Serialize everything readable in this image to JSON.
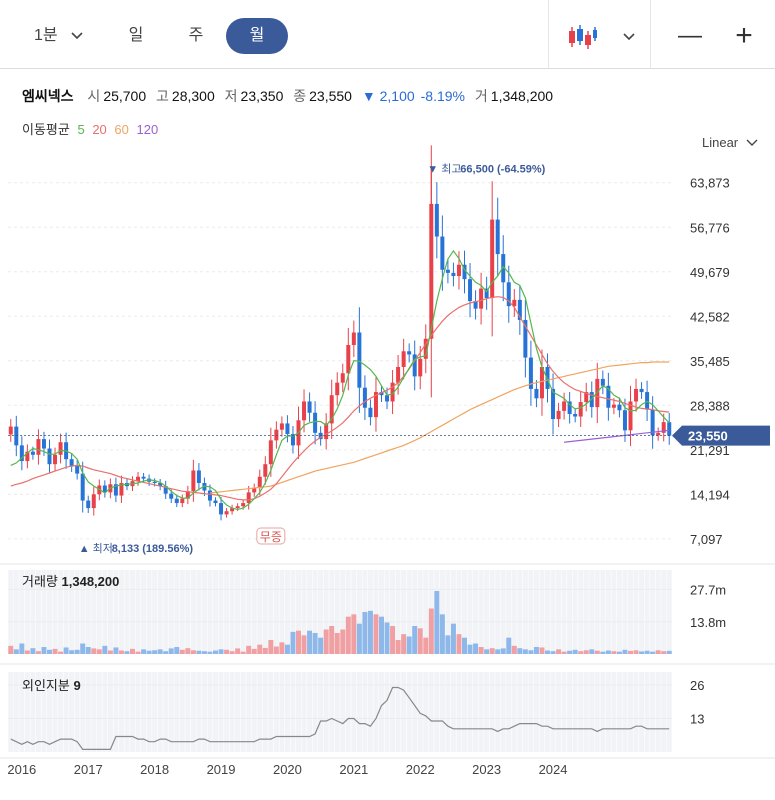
{
  "toolbar": {
    "tabs": [
      {
        "label": "1분",
        "active": false,
        "dropdown": true
      },
      {
        "label": "일",
        "active": false
      },
      {
        "label": "주",
        "active": false
      },
      {
        "label": "월",
        "active": true
      }
    ],
    "chart_type_icon": "candlestick-icon",
    "zoom_out": "—",
    "zoom_in": "+"
  },
  "stock": {
    "name": "엠씨넥스",
    "open_label": "시",
    "open": "25,700",
    "high_label": "고",
    "high": "28,300",
    "low_label": "저",
    "low": "23,350",
    "close_label": "종",
    "close": "23,550",
    "change": "▼ 2,100",
    "change_pct": "-8.19%",
    "volume_label": "거",
    "volume": "1,348,200"
  },
  "moving_average": {
    "label": "이동평균",
    "periods": [
      {
        "label": "5",
        "color": "#55b74e"
      },
      {
        "label": "20",
        "color": "#e8716c"
      },
      {
        "label": "60",
        "color": "#f0a460"
      },
      {
        "label": "120",
        "color": "#9b5fd6"
      }
    ]
  },
  "scale_mode": "Linear",
  "colors": {
    "up": "#e8414a",
    "down": "#2774d6",
    "accent": "#3b5a9a"
  },
  "chart_data": {
    "type": "candlestick",
    "price_axis_ticks": [
      63873,
      56776,
      49679,
      42582,
      35485,
      28388,
      21291,
      14194,
      7097
    ],
    "price_axis_labels": [
      "63,873",
      "56,776",
      "49,679",
      "42,582",
      "35,485",
      "28,388",
      "21,291",
      "14,194",
      "7,097"
    ],
    "ylim": [
      5000,
      67500
    ],
    "current_price": 23550,
    "current_price_label": "23,550",
    "high_marker": {
      "label": "최고",
      "value_text": "66,500 (-64.59%)",
      "value": 66500
    },
    "low_marker": {
      "label": "최저",
      "value_text": "8,133 (189.56%)",
      "value": 8133
    },
    "event_marker": "무증",
    "x_labels": [
      "2016",
      "2017",
      "2018",
      "2019",
      "2020",
      "2021",
      "2022",
      "2023",
      "2024"
    ],
    "grid": true,
    "ohlc_close": [
      25000,
      22000,
      19500,
      21000,
      20500,
      23000,
      21500,
      19000,
      20500,
      22500,
      19800,
      18700,
      17500,
      13200,
      12000,
      14200,
      15600,
      14500,
      15800,
      14000,
      16000,
      15500,
      16300,
      17000,
      16700,
      16200,
      16000,
      15500,
      14300,
      13500,
      12800,
      13500,
      14700,
      18000,
      16000,
      14800,
      13200,
      12800,
      11000,
      11500,
      12000,
      12300,
      12800,
      14500,
      15200,
      17000,
      19000,
      22800,
      24500,
      25500,
      23800,
      22000,
      26000,
      29000,
      27200,
      24000,
      23000,
      25500,
      30000,
      32000,
      33500,
      38000,
      40000,
      31200,
      28000,
      26500,
      30500,
      30000,
      29000,
      32000,
      34500,
      37000,
      36500,
      33000,
      35800,
      39000,
      60500,
      55300,
      50000,
      49500,
      49000,
      50800,
      48500,
      45000,
      43800,
      47000,
      45500,
      58000,
      52500,
      48000,
      44200,
      45200,
      42000,
      36000,
      31000,
      29500,
      34500,
      31000,
      26200,
      27500,
      29000,
      27000,
      26600,
      28900,
      30500,
      28100,
      32600,
      31500,
      28000,
      28500,
      27600,
      24400,
      29000,
      31000,
      30500,
      27700,
      23600,
      24000,
      25700,
      23550
    ],
    "ma5": [
      18800,
      19200,
      20000,
      20800,
      21500,
      21300,
      21000,
      20600,
      20600,
      21200,
      21100,
      20700,
      19800,
      17600,
      16200,
      15500,
      15000,
      14400,
      15200,
      15500,
      15700,
      15800,
      15900,
      16000,
      16300,
      16500,
      16400,
      16100,
      15500,
      14700,
      14000,
      13600,
      13600,
      14400,
      15000,
      15500,
      15400,
      14800,
      13400,
      12500,
      12000,
      11800,
      12000,
      12600,
      13500,
      14500,
      16000,
      18000,
      20500,
      22800,
      23500,
      23500,
      24000,
      25200,
      25600,
      25800,
      25800,
      25200,
      26200,
      27800,
      30000,
      33200,
      35500,
      35400,
      34800,
      34100,
      33000,
      31500,
      30000,
      30200,
      31300,
      32800,
      34300,
      35700,
      36100,
      36300,
      40600,
      45000,
      48600,
      51700,
      53000,
      51800,
      50000,
      49000,
      48000,
      47500,
      46500,
      48000,
      49000,
      50500,
      49500,
      48000,
      47500,
      45500,
      41500,
      37500,
      34500,
      32500,
      30500,
      30000,
      29500,
      28500,
      27800,
      28000,
      28600,
      29400,
      30500,
      31500,
      31000,
      30000,
      29500,
      28000,
      27500,
      27600,
      28500,
      29000,
      28500,
      27500,
      26500,
      25600
    ],
    "ma20": [
      15500,
      15800,
      16000,
      16300,
      16700,
      17000,
      17300,
      17600,
      17900,
      18200,
      18500,
      18700,
      18800,
      18700,
      18400,
      18100,
      17900,
      17700,
      17500,
      17200,
      16900,
      16700,
      16500,
      16300,
      16100,
      15900,
      15700,
      15500,
      15300,
      15100,
      14900,
      14700,
      14600,
      14500,
      14400,
      14300,
      14200,
      14100,
      14000,
      13800,
      13600,
      13400,
      13300,
      13300,
      13500,
      13900,
      14400,
      15000,
      15900,
      17000,
      18100,
      19200,
      20200,
      21100,
      22000,
      22700,
      23300,
      23800,
      24300,
      24900,
      25600,
      26500,
      27500,
      28300,
      29000,
      29500,
      30000,
      30400,
      30800,
      31300,
      32000,
      33000,
      34200,
      35500,
      36800,
      38200,
      39500,
      40700,
      41800,
      42700,
      43400,
      44000,
      44400,
      44700,
      44900,
      45100,
      45400,
      45600,
      45700,
      45600,
      45000,
      44000,
      42500,
      41000,
      39500,
      38000,
      36500,
      35000,
      33800,
      32800,
      32000,
      31400,
      30900,
      30600,
      30300,
      30000,
      29800,
      29600,
      29400,
      29200,
      29000,
      28700,
      28400,
      28100,
      27900,
      27800,
      27700,
      27500,
      27400,
      27300
    ],
    "ma60": [
      null,
      null,
      null,
      null,
      null,
      null,
      null,
      null,
      null,
      null,
      null,
      null,
      null,
      null,
      null,
      null,
      null,
      null,
      null,
      null,
      null,
      null,
      null,
      null,
      null,
      null,
      null,
      null,
      null,
      null,
      null,
      null,
      null,
      null,
      null,
      null,
      14400,
      14500,
      14600,
      14700,
      14800,
      14900,
      15000,
      15100,
      15200,
      15300,
      15400,
      15500,
      15800,
      16100,
      16400,
      16700,
      17000,
      17300,
      17600,
      17900,
      18100,
      18300,
      18500,
      18700,
      18900,
      19100,
      19300,
      19600,
      19900,
      20200,
      20500,
      20800,
      21100,
      21400,
      21700,
      22000,
      22400,
      22800,
      23200,
      23700,
      24200,
      24700,
      25200,
      25700,
      26200,
      26700,
      27200,
      27700,
      28100,
      28500,
      28900,
      29300,
      29700,
      30100,
      30500,
      30900,
      31200,
      31500,
      31800,
      32000,
      32200,
      32400,
      32600,
      32800,
      33000,
      33200,
      33400,
      33600,
      33800,
      34000,
      34200,
      34400,
      34600,
      34700,
      34800,
      34900,
      35000,
      35100,
      35200,
      35200,
      35300,
      35300,
      35300,
      35300
    ],
    "ma120_points": [
      [
        100,
        22500
      ],
      [
        119,
        24400
      ]
    ],
    "volume_label": "거래량",
    "volume_value": "1,348,200",
    "volume_axis_labels": [
      "27.7m",
      "13.8m"
    ],
    "volume_ylim": [
      0,
      36000000
    ],
    "volume": [
      3.5,
      2.0,
      4.5,
      1.5,
      2.5,
      1.2,
      3.0,
      1.8,
      2.2,
      1.0,
      2.8,
      1.6,
      1.8,
      4.5,
      3.0,
      2.4,
      2.0,
      3.5,
      1.5,
      2.8,
      1.5,
      1.2,
      2.2,
      1.0,
      2.0,
      1.4,
      1.6,
      2.0,
      1.2,
      2.4,
      3.0,
      1.8,
      2.5,
      1.6,
      1.4,
      1.2,
      1.0,
      1.5,
      2.0,
      1.8,
      1.2,
      2.4,
      1.0,
      3.5,
      2.2,
      4.0,
      2.6,
      6.0,
      3.2,
      5.0,
      4.0,
      9.5,
      10.0,
      8.0,
      10.0,
      9.0,
      7.0,
      10.5,
      12.0,
      9.0,
      10.5,
      16.0,
      17.0,
      13.0,
      18.0,
      18.5,
      17.0,
      16.0,
      13.5,
      12.0,
      6.0,
      8.5,
      7.5,
      12.0,
      11.0,
      7.0,
      19.5,
      27.0,
      17.0,
      8.0,
      13.0,
      8.5,
      7.0,
      4.0,
      4.5,
      3.0,
      2.0,
      2.5,
      2.0,
      2.4,
      7.0,
      3.5,
      2.5,
      2.0,
      1.6,
      3.0,
      2.8,
      1.5,
      1.2,
      2.0,
      1.0,
      1.4,
      1.8,
      1.2,
      1.6,
      2.0,
      1.4,
      1.0,
      1.5,
      1.2,
      1.0,
      1.8,
      1.3,
      1.6,
      1.1,
      1.4,
      1.0,
      1.6,
      1.2,
      1.35
    ],
    "foreign_label": "외인지분",
    "foreign_value": "9",
    "foreign_axis_labels": [
      "26",
      "13"
    ],
    "foreign_ylim": [
      0,
      31
    ],
    "foreign": [
      5,
      4,
      3,
      4,
      3,
      4,
      4,
      3,
      4,
      5,
      5,
      5,
      4,
      1,
      1,
      1,
      1,
      1,
      1,
      6,
      6,
      6,
      6,
      5,
      5,
      4,
      4,
      5,
      5,
      4,
      4,
      4,
      4,
      4,
      5,
      5,
      4,
      4,
      4,
      4,
      4,
      4,
      4,
      4,
      4,
      5,
      5,
      5,
      6,
      6,
      6,
      6,
      6,
      6,
      6,
      7,
      12,
      12,
      13,
      12,
      11,
      13,
      13,
      11,
      11,
      10,
      13,
      18,
      20,
      25,
      25,
      24,
      21,
      18,
      15,
      14,
      12,
      12,
      12,
      10,
      9,
      9,
      9,
      9,
      9,
      9,
      9,
      9,
      8,
      9,
      9,
      10,
      11,
      11,
      11,
      11,
      10,
      10,
      9,
      9,
      9,
      9,
      9,
      9,
      9,
      9,
      8,
      9,
      9,
      9,
      9,
      9,
      9,
      10,
      10,
      9,
      9,
      9,
      9,
      9
    ]
  }
}
